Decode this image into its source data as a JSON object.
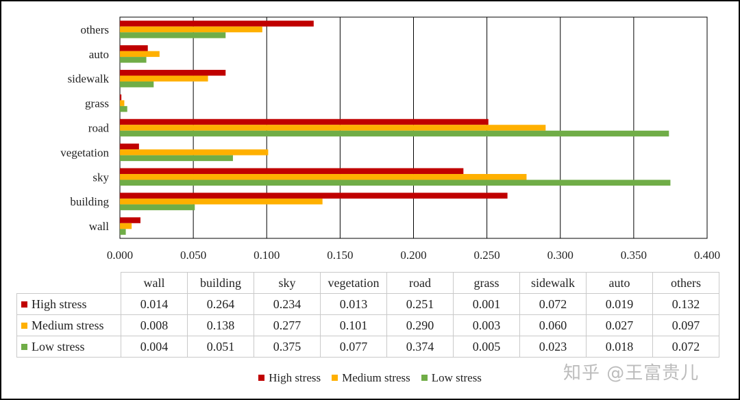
{
  "chart_data": {
    "type": "bar",
    "orientation": "horizontal",
    "categories": [
      "wall",
      "building",
      "sky",
      "vegetation",
      "road",
      "grass",
      "sidewalk",
      "auto",
      "others"
    ],
    "series": [
      {
        "name": "High stress",
        "color": "#c00000",
        "values": [
          0.014,
          0.264,
          0.234,
          0.013,
          0.251,
          0.001,
          0.072,
          0.019,
          0.132
        ],
        "labels": [
          "0.014",
          "0.264",
          "0.234",
          "0.013",
          "0.251",
          "0.001",
          "0.072",
          "0.019",
          "0.132"
        ]
      },
      {
        "name": "Medium stress",
        "color": "#ffb000",
        "values": [
          0.008,
          0.138,
          0.277,
          0.101,
          0.29,
          0.003,
          0.06,
          0.027,
          0.097
        ],
        "labels": [
          "0.008",
          "0.138",
          "0.277",
          "0.101",
          "0.290",
          "0.003",
          "0.060",
          "0.027",
          "0.097"
        ]
      },
      {
        "name": "Low stress",
        "color": "#70ad47",
        "values": [
          0.004,
          0.051,
          0.375,
          0.077,
          0.374,
          0.005,
          0.023,
          0.018,
          0.072
        ],
        "labels": [
          "0.004",
          "0.051",
          "0.375",
          "0.077",
          "0.374",
          "0.005",
          "0.023",
          "0.018",
          "0.072"
        ]
      }
    ],
    "xlim": [
      0,
      0.4
    ],
    "xticks": [
      "0.000",
      "0.050",
      "0.100",
      "0.150",
      "0.200",
      "0.250",
      "0.300",
      "0.350",
      "0.400"
    ],
    "grid": "vertical",
    "legend_position": "bottom",
    "data_table": true
  },
  "watermark": "知乎 @王富贵儿"
}
